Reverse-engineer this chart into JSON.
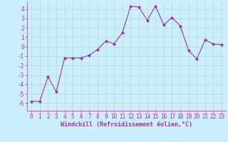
{
  "x": [
    0,
    1,
    2,
    3,
    4,
    5,
    6,
    7,
    8,
    9,
    10,
    11,
    12,
    13,
    14,
    15,
    16,
    17,
    18,
    19,
    20,
    21,
    22,
    23
  ],
  "y": [
    -5.8,
    -5.8,
    -3.2,
    -4.8,
    -1.2,
    -1.2,
    -1.2,
    -0.9,
    -0.3,
    0.6,
    0.3,
    1.5,
    4.3,
    4.2,
    2.8,
    4.3,
    2.3,
    3.1,
    2.2,
    -0.4,
    -1.3,
    0.7,
    0.3,
    0.2
  ],
  "line_color": "#9933aa",
  "marker": "D",
  "markersize": 2,
  "linewidth": 0.8,
  "bg_color": "#cceeff",
  "grid_color": "#aaddcc",
  "spine_color": "#9933aa",
  "tick_color": "#9933aa",
  "xlabel": "Windchill (Refroidissement éolien,°C)",
  "xlabel_fontsize": 6.0,
  "tick_fontsize": 5.5,
  "ylim": [
    -6.8,
    4.8
  ],
  "xlim": [
    -0.5,
    23.5
  ],
  "yticks": [
    -6,
    -5,
    -4,
    -3,
    -2,
    -1,
    0,
    1,
    2,
    3,
    4
  ],
  "xticks": [
    0,
    1,
    2,
    3,
    4,
    5,
    6,
    7,
    8,
    9,
    10,
    11,
    12,
    13,
    14,
    15,
    16,
    17,
    18,
    19,
    20,
    21,
    22,
    23
  ]
}
